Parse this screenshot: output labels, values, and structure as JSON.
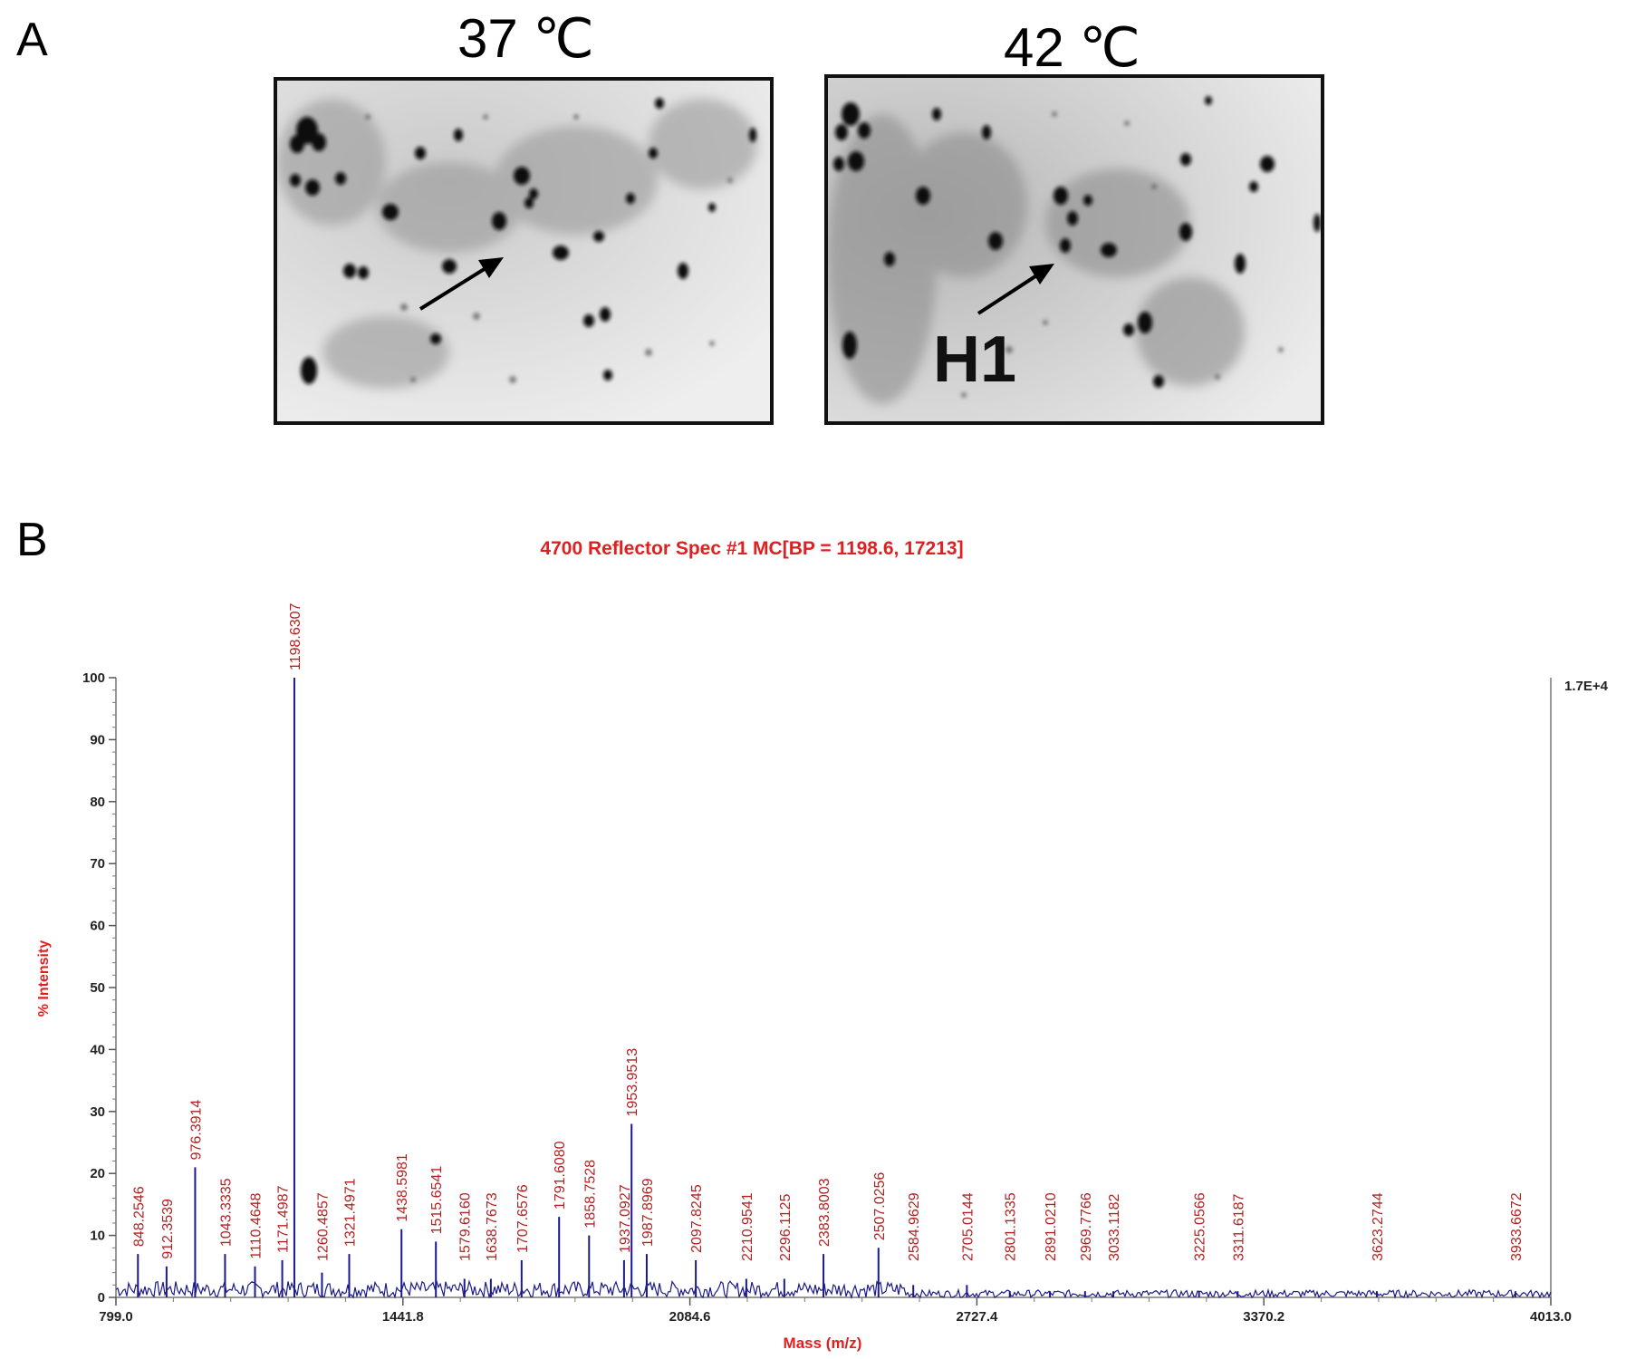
{
  "panel_a": {
    "letter": "A",
    "gels": [
      {
        "title": "37 ℃",
        "label": ""
      },
      {
        "title": "42 ℃",
        "label": "H1"
      }
    ]
  },
  "panel_b": {
    "letter": "B"
  },
  "chart_data": {
    "type": "line",
    "title": "4700 Reflector Spec #1 MC[BP = 1198.6, 17213]",
    "xlabel": "Mass (m/z)",
    "ylabel": "% Intensity",
    "xlim": [
      799.0,
      4013.0
    ],
    "ylim": [
      0,
      100
    ],
    "x_ticks": [
      "799.0",
      "1441.8",
      "2084.6",
      "2727.4",
      "3370.2",
      "4013.0"
    ],
    "y_ticks": [
      "0",
      "10",
      "20",
      "30",
      "40",
      "50",
      "60",
      "70",
      "80",
      "90",
      "100"
    ],
    "right_axis_label": "1.7E+4",
    "line_color": "#1a1a8c",
    "peaks": [
      {
        "mz": 848.2546,
        "intensity": 7,
        "label": "848.2546"
      },
      {
        "mz": 912.3539,
        "intensity": 5,
        "label": "912.3539"
      },
      {
        "mz": 976.3914,
        "intensity": 21,
        "label": "976.3914"
      },
      {
        "mz": 1043.3335,
        "intensity": 7,
        "label": "1043.3335"
      },
      {
        "mz": 1110.4648,
        "intensity": 5,
        "label": "1110.4648"
      },
      {
        "mz": 1171.4987,
        "intensity": 6,
        "label": "1171.4987"
      },
      {
        "mz": 1198.6307,
        "intensity": 100,
        "label": "1198.6307"
      },
      {
        "mz": 1260.4857,
        "intensity": 4,
        "label": "1260.4857"
      },
      {
        "mz": 1321.4971,
        "intensity": 7,
        "label": "1321.4971"
      },
      {
        "mz": 1438.5981,
        "intensity": 11,
        "label": "1438.5981"
      },
      {
        "mz": 1515.6541,
        "intensity": 9,
        "label": "1515.6541"
      },
      {
        "mz": 1579.616,
        "intensity": 3,
        "label": "1579.6160"
      },
      {
        "mz": 1638.7673,
        "intensity": 3,
        "label": "1638.7673"
      },
      {
        "mz": 1707.6576,
        "intensity": 6,
        "label": "1707.6576"
      },
      {
        "mz": 1791.608,
        "intensity": 13,
        "label": "1791.6080"
      },
      {
        "mz": 1858.7528,
        "intensity": 10,
        "label": "1858.7528"
      },
      {
        "mz": 1937.0927,
        "intensity": 6,
        "label": "1937.0927"
      },
      {
        "mz": 1953.9513,
        "intensity": 28,
        "label": "1953.9513"
      },
      {
        "mz": 1987.8969,
        "intensity": 7,
        "label": "1987.8969"
      },
      {
        "mz": 2097.8245,
        "intensity": 6,
        "label": "2097.8245"
      },
      {
        "mz": 2210.9541,
        "intensity": 3,
        "label": "2210.9541"
      },
      {
        "mz": 2296.1125,
        "intensity": 3,
        "label": "2296.1125"
      },
      {
        "mz": 2383.8003,
        "intensity": 7,
        "label": "2383.8003"
      },
      {
        "mz": 2507.0256,
        "intensity": 8,
        "label": "2507.0256"
      },
      {
        "mz": 2584.9629,
        "intensity": 2,
        "label": "2584.9629"
      },
      {
        "mz": 2705.0144,
        "intensity": 2,
        "label": "2705.0144"
      },
      {
        "mz": 2801.1335,
        "intensity": 1,
        "label": "2801.1335"
      },
      {
        "mz": 2891.021,
        "intensity": 1,
        "label": "2891.0210"
      },
      {
        "mz": 2969.7766,
        "intensity": 1,
        "label": "2969.7766"
      },
      {
        "mz": 3033.1182,
        "intensity": 1,
        "label": "3033.1182"
      },
      {
        "mz": 3225.0566,
        "intensity": 1,
        "label": "3225.0566"
      },
      {
        "mz": 3311.6187,
        "intensity": 1,
        "label": "3311.6187"
      },
      {
        "mz": 3623.2744,
        "intensity": 1,
        "label": "3623.2744"
      },
      {
        "mz": 3933.6672,
        "intensity": 1,
        "label": "3933.6672"
      }
    ]
  }
}
